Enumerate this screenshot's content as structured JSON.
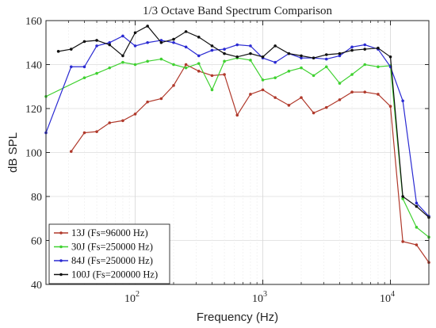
{
  "chart_data": {
    "type": "line",
    "title": "1/3 Octave Band Spectrum Comparison",
    "xlabel": "Frequency (Hz)",
    "ylabel": "dB SPL",
    "x_scale": "log",
    "xlim": [
      20,
      20000
    ],
    "ylim": [
      40,
      160
    ],
    "yticks": [
      40,
      60,
      80,
      100,
      120,
      140,
      160
    ],
    "xticks": [
      {
        "value": 100,
        "base": "10",
        "exp": "2"
      },
      {
        "value": 1000,
        "base": "10",
        "exp": "3"
      },
      {
        "value": 10000,
        "base": "10",
        "exp": "4"
      }
    ],
    "grid": true,
    "legend_position": "bottom-left",
    "series": [
      {
        "name": "13J (Fs=96000 Hz)",
        "color": "#b0392b",
        "points": [
          [
            31.5,
            100.5
          ],
          [
            40,
            109
          ],
          [
            50,
            109.5
          ],
          [
            63,
            113.5
          ],
          [
            80,
            114.5
          ],
          [
            100,
            117.5
          ],
          [
            125,
            123
          ],
          [
            160,
            124.5
          ],
          [
            200,
            130.5
          ],
          [
            250,
            140
          ],
          [
            315,
            137
          ],
          [
            400,
            135
          ],
          [
            500,
            135.5
          ],
          [
            630,
            117
          ],
          [
            800,
            126.5
          ],
          [
            1000,
            128.5
          ],
          [
            1250,
            125
          ],
          [
            1600,
            121.5
          ],
          [
            2000,
            125
          ],
          [
            2500,
            118
          ],
          [
            3150,
            120.5
          ],
          [
            4000,
            124
          ],
          [
            5000,
            127.5
          ],
          [
            6300,
            127.5
          ],
          [
            8000,
            126.5
          ],
          [
            10000,
            121
          ],
          [
            12500,
            59.5
          ],
          [
            16000,
            58
          ],
          [
            20000,
            50
          ]
        ]
      },
      {
        "name": "30J (Fs=250000 Hz)",
        "color": "#3fd130",
        "points": [
          [
            20,
            125.5
          ],
          [
            40,
            134
          ],
          [
            50,
            136
          ],
          [
            63,
            138.5
          ],
          [
            80,
            141
          ],
          [
            100,
            140
          ],
          [
            125,
            141.5
          ],
          [
            160,
            142.5
          ],
          [
            200,
            140
          ],
          [
            250,
            138.5
          ],
          [
            315,
            140.5
          ],
          [
            400,
            128.5
          ],
          [
            500,
            141.5
          ],
          [
            630,
            143
          ],
          [
            800,
            142
          ],
          [
            1000,
            133
          ],
          [
            1250,
            134
          ],
          [
            1600,
            137
          ],
          [
            2000,
            138.5
          ],
          [
            2500,
            135
          ],
          [
            3150,
            139
          ],
          [
            4000,
            131.5
          ],
          [
            5000,
            135.5
          ],
          [
            6300,
            140
          ],
          [
            8000,
            139
          ],
          [
            10000,
            139.5
          ],
          [
            12500,
            79
          ],
          [
            16000,
            66
          ],
          [
            20000,
            61.5
          ]
        ]
      },
      {
        "name": "84J (Fs=250000 Hz)",
        "color": "#2a2ad2",
        "points": [
          [
            20,
            109
          ],
          [
            31.5,
            139
          ],
          [
            40,
            139
          ],
          [
            50,
            148.5
          ],
          [
            63,
            150
          ],
          [
            80,
            153
          ],
          [
            100,
            148.5
          ],
          [
            125,
            150
          ],
          [
            160,
            151
          ],
          [
            200,
            150
          ],
          [
            250,
            148
          ],
          [
            315,
            144
          ],
          [
            400,
            146.5
          ],
          [
            500,
            147
          ],
          [
            630,
            149
          ],
          [
            800,
            148.5
          ],
          [
            1000,
            143
          ],
          [
            1250,
            141
          ],
          [
            1600,
            145
          ],
          [
            2000,
            143
          ],
          [
            2500,
            143
          ],
          [
            3150,
            142.5
          ],
          [
            4000,
            144
          ],
          [
            5000,
            148
          ],
          [
            6300,
            149
          ],
          [
            8000,
            147
          ],
          [
            10000,
            139
          ],
          [
            12500,
            123.5
          ],
          [
            16000,
            77
          ],
          [
            20000,
            71
          ]
        ]
      },
      {
        "name": "100J (Fs=200000 Hz)",
        "color": "#111111",
        "points": [
          [
            25,
            146
          ],
          [
            31.5,
            147
          ],
          [
            40,
            150.5
          ],
          [
            50,
            151
          ],
          [
            63,
            149
          ],
          [
            80,
            144
          ],
          [
            100,
            154.5
          ],
          [
            125,
            157.5
          ],
          [
            160,
            150
          ],
          [
            200,
            151.5
          ],
          [
            250,
            155
          ],
          [
            315,
            152.5
          ],
          [
            400,
            148.5
          ],
          [
            500,
            145
          ],
          [
            630,
            143.5
          ],
          [
            800,
            145
          ],
          [
            1000,
            143.5
          ],
          [
            1250,
            148.5
          ],
          [
            1600,
            145
          ],
          [
            2000,
            144
          ],
          [
            2500,
            143
          ],
          [
            3150,
            144.5
          ],
          [
            4000,
            145
          ],
          [
            5000,
            146.5
          ],
          [
            6300,
            147
          ],
          [
            8000,
            147.5
          ],
          [
            10000,
            143.5
          ],
          [
            12500,
            80
          ],
          [
            16000,
            75.5
          ],
          [
            20000,
            70.5
          ]
        ]
      }
    ]
  }
}
